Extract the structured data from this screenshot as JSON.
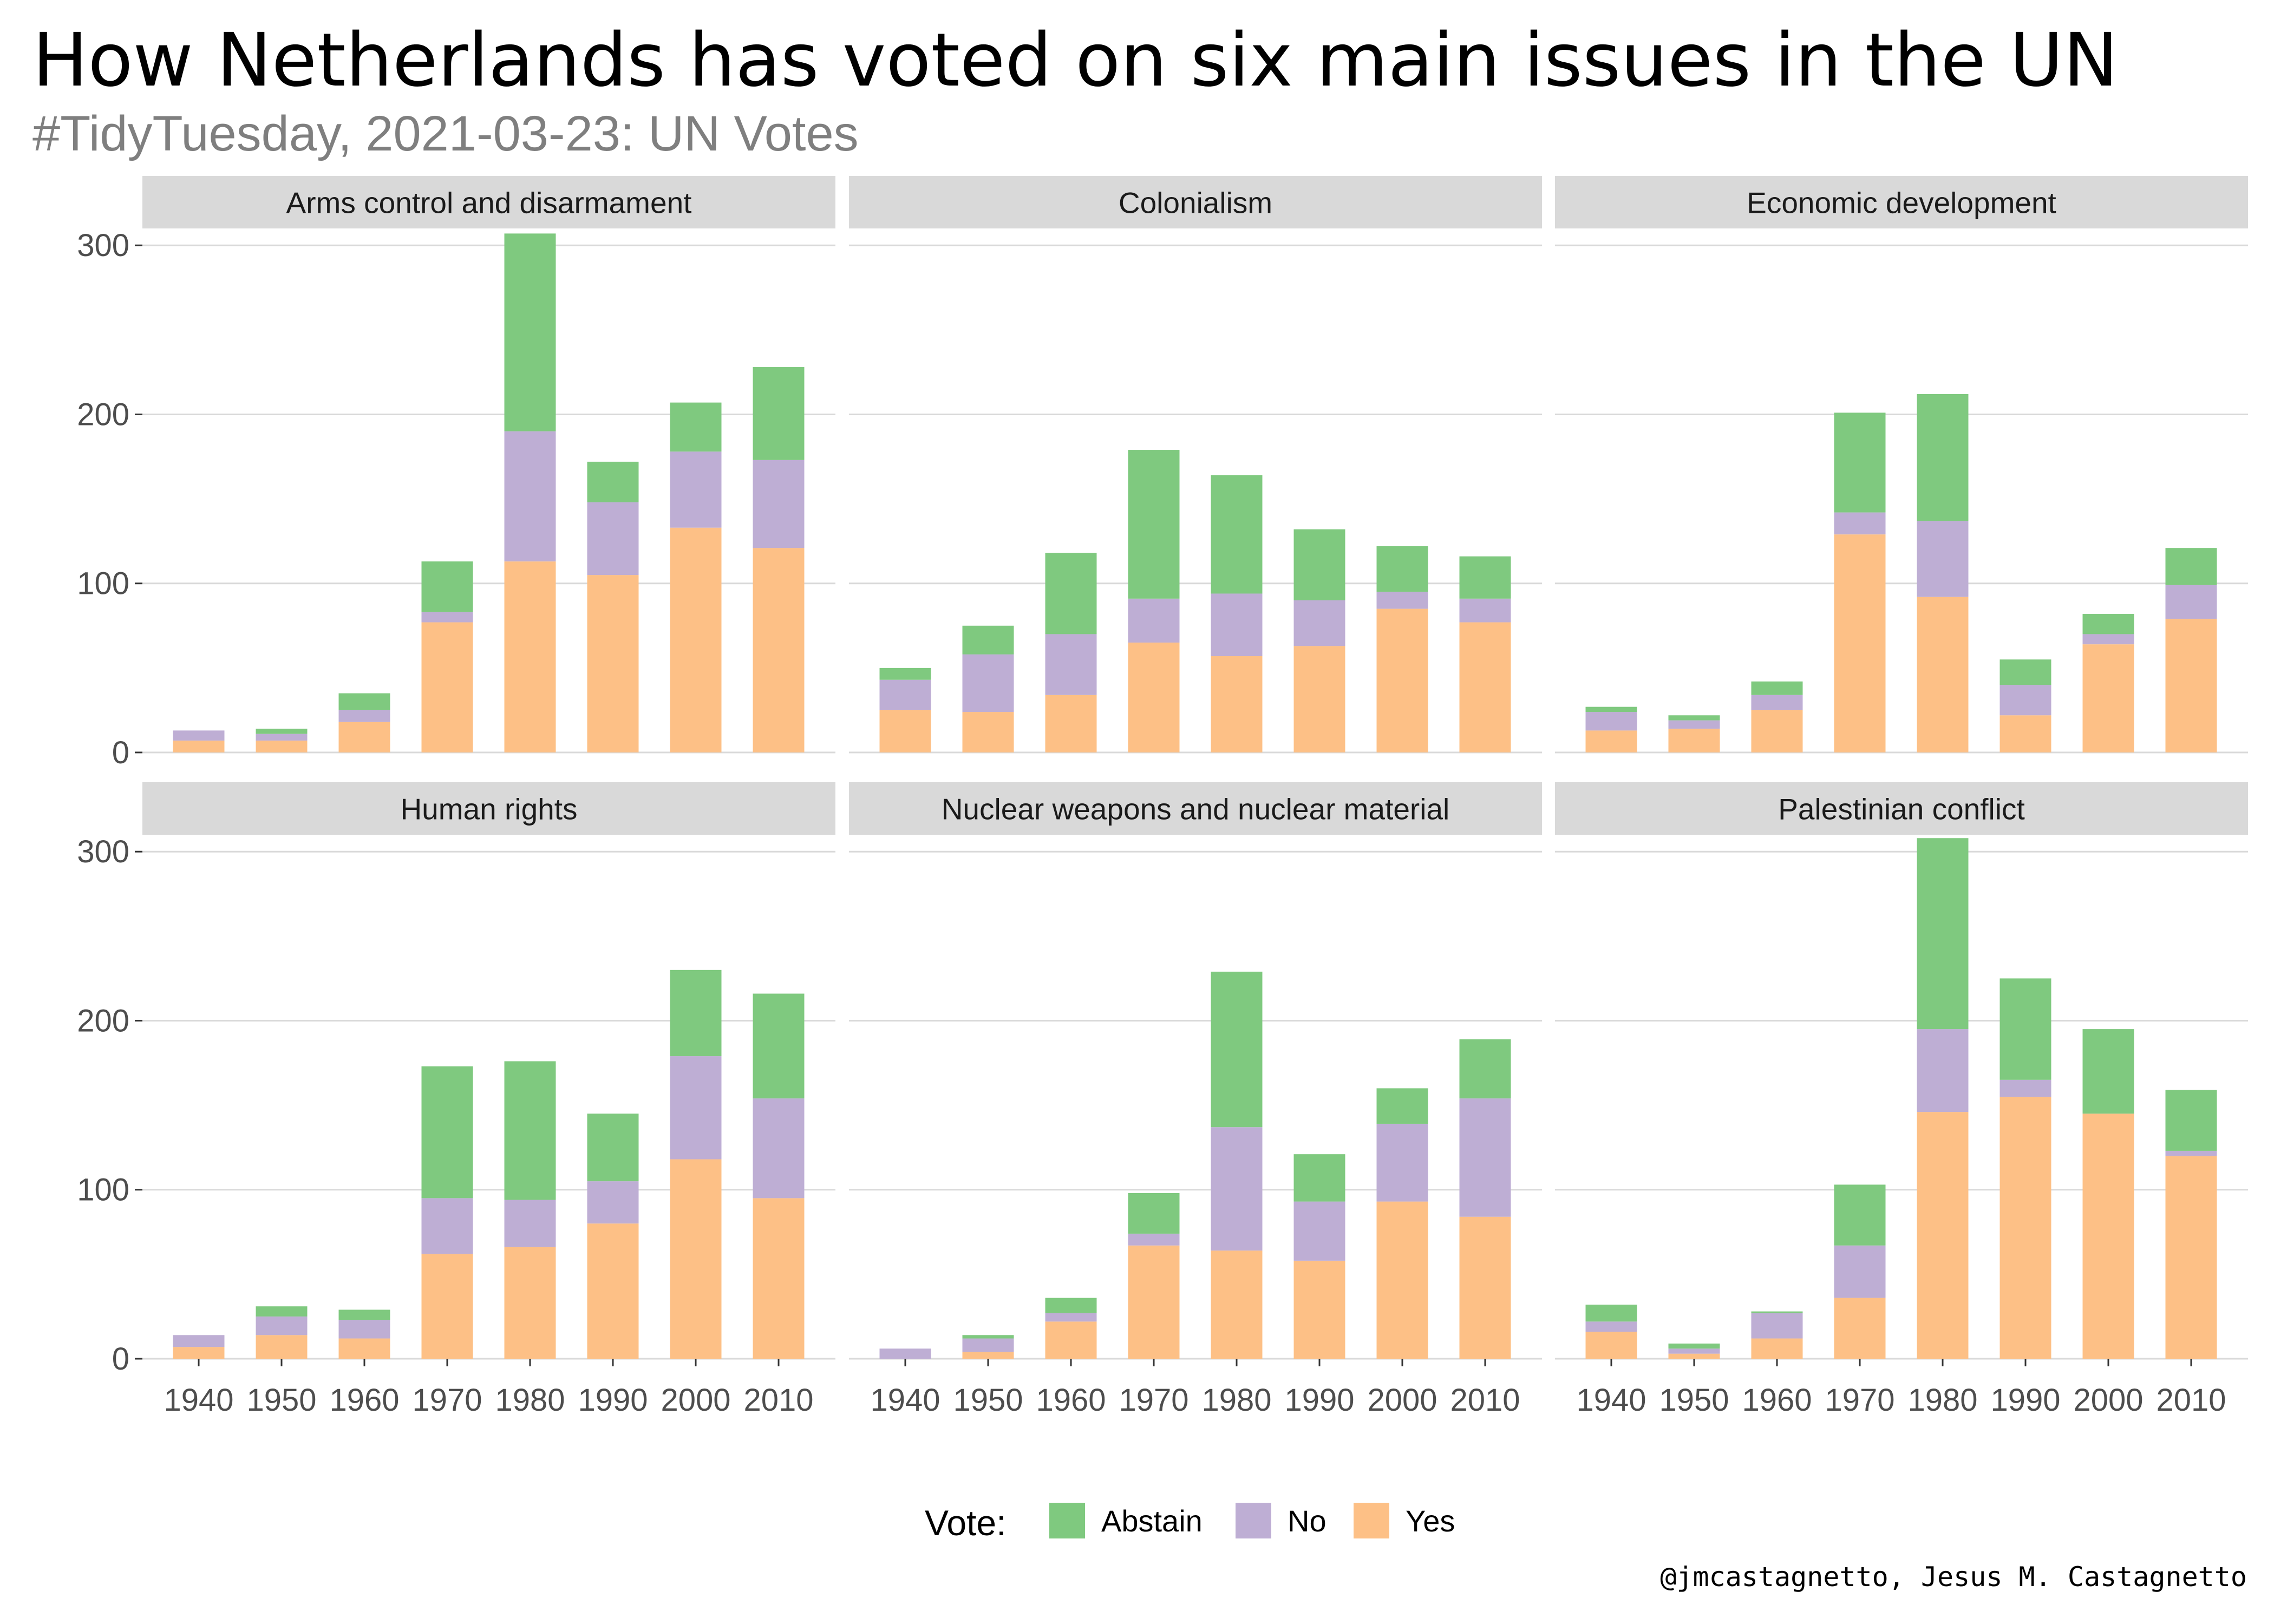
{
  "title": "How Netherlands has voted on six main issues in the UN",
  "subtitle": "#TidyTuesday, 2021-03-23: UN Votes",
  "caption": "@jmcastagnetto, Jesus M. Castagnetto",
  "legend": {
    "title": "Vote:",
    "items": [
      {
        "label": "Abstain",
        "color": "#7fc97f"
      },
      {
        "label": "No",
        "color": "#beaed4"
      },
      {
        "label": "Yes",
        "color": "#fdc086"
      }
    ]
  },
  "chart_data": {
    "type": "bar",
    "stacked": true,
    "facet_layout": "3 columns x 2 rows, shared axes",
    "categories": [
      "1940",
      "1950",
      "1960",
      "1970",
      "1980",
      "1990",
      "2000",
      "2010"
    ],
    "y_ticks": [
      0,
      100,
      200,
      300
    ],
    "ylim": [
      0,
      310
    ],
    "grid": true,
    "legend_position": "bottom",
    "stack_order_bottom_to_top": [
      "Yes",
      "No",
      "Abstain"
    ],
    "panels": [
      {
        "title": "Arms control and disarmament",
        "series": [
          {
            "name": "Yes",
            "values": [
              7,
              7,
              18,
              77,
              113,
              105,
              133,
              121
            ]
          },
          {
            "name": "No",
            "values": [
              6,
              4,
              7,
              6,
              77,
              43,
              45,
              52
            ]
          },
          {
            "name": "Abstain",
            "values": [
              0,
              3,
              10,
              30,
              117,
              24,
              29,
              55
            ]
          }
        ]
      },
      {
        "title": "Colonialism",
        "series": [
          {
            "name": "Yes",
            "values": [
              25,
              24,
              34,
              65,
              57,
              63,
              85,
              77
            ]
          },
          {
            "name": "No",
            "values": [
              18,
              34,
              36,
              26,
              37,
              27,
              10,
              14
            ]
          },
          {
            "name": "Abstain",
            "values": [
              7,
              17,
              48,
              88,
              70,
              42,
              27,
              25
            ]
          }
        ]
      },
      {
        "title": "Economic development",
        "series": [
          {
            "name": "Yes",
            "values": [
              13,
              14,
              25,
              129,
              92,
              22,
              64,
              79
            ]
          },
          {
            "name": "No",
            "values": [
              11,
              5,
              9,
              13,
              45,
              18,
              6,
              20
            ]
          },
          {
            "name": "Abstain",
            "values": [
              3,
              3,
              8,
              59,
              75,
              15,
              12,
              22
            ]
          }
        ]
      },
      {
        "title": "Human rights",
        "series": [
          {
            "name": "Yes",
            "values": [
              7,
              14,
              12,
              62,
              66,
              80,
              118,
              95
            ]
          },
          {
            "name": "No",
            "values": [
              7,
              11,
              11,
              33,
              28,
              25,
              61,
              59
            ]
          },
          {
            "name": "Abstain",
            "values": [
              0,
              6,
              6,
              78,
              82,
              40,
              51,
              62
            ]
          }
        ]
      },
      {
        "title": "Nuclear weapons and nuclear material",
        "series": [
          {
            "name": "Yes",
            "values": [
              0,
              4,
              22,
              67,
              64,
              58,
              93,
              84
            ]
          },
          {
            "name": "No",
            "values": [
              6,
              8,
              5,
              7,
              73,
              35,
              46,
              70
            ]
          },
          {
            "name": "Abstain",
            "values": [
              0,
              2,
              9,
              24,
              92,
              28,
              21,
              35
            ]
          }
        ]
      },
      {
        "title": "Palestinian conflict",
        "series": [
          {
            "name": "Yes",
            "values": [
              16,
              3,
              12,
              36,
              146,
              155,
              145,
              120
            ]
          },
          {
            "name": "No",
            "values": [
              6,
              3,
              15,
              31,
              49,
              10,
              0,
              3
            ]
          },
          {
            "name": "Abstain",
            "values": [
              10,
              3,
              1,
              36,
              113,
              60,
              50,
              36
            ]
          }
        ]
      }
    ]
  }
}
